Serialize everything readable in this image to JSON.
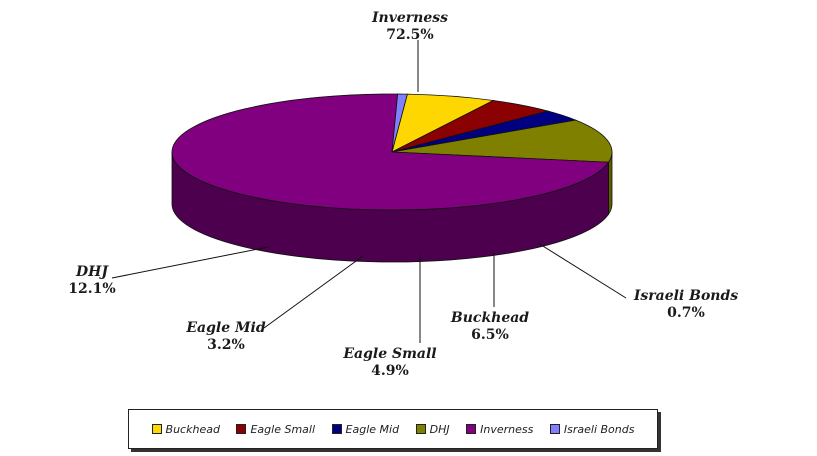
{
  "chart_data": {
    "type": "pie",
    "title": "",
    "style": "3d-exploded-none",
    "legend": "bottom",
    "slices": [
      {
        "label": "Buckhead",
        "value": 6.5,
        "pct_label": "6.5%",
        "color": "#FFD700",
        "side_color": "#B89400"
      },
      {
        "label": "Eagle Small",
        "value": 4.9,
        "pct_label": "4.9%",
        "color": "#8B0000",
        "side_color": "#5A0000"
      },
      {
        "label": "Eagle Mid",
        "value": 3.2,
        "pct_label": "3.2%",
        "color": "#000080",
        "side_color": "#000055"
      },
      {
        "label": "DHJ",
        "value": 12.1,
        "pct_label": "12.1%",
        "color": "#808000",
        "side_color": "#5C5C00"
      },
      {
        "label": "Inverness",
        "value": 72.5,
        "pct_label": "72.5%",
        "color": "#800080",
        "side_color": "#4D004D"
      },
      {
        "label": "Israeli Bonds",
        "value": 0.7,
        "pct_label": "0.7%",
        "color": "#8080FF",
        "side_color": "#5A5AC0"
      }
    ]
  }
}
